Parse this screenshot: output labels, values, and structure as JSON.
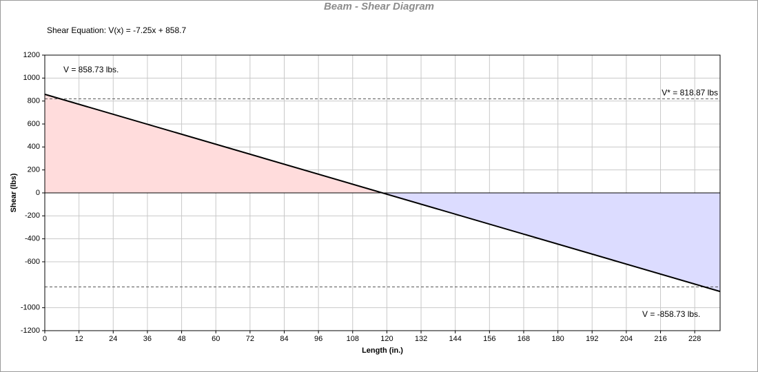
{
  "chart_data": {
    "type": "line",
    "title": "Beam - Shear Diagram",
    "equation": "Shear Equation:  V(x) = -7.25x + 858.7",
    "xlabel": "Length (in.)",
    "ylabel": "Shear (lbs)",
    "x": [
      0,
      236.9
    ],
    "series": [
      {
        "name": "Shear",
        "color": "#000000",
        "values": [
          858.73,
          -858.73
        ]
      }
    ],
    "positive_fill": "#ffdcdc",
    "negative_fill": "#dcdcff",
    "reference_lines": [
      818.87,
      -818.87
    ],
    "annotations": [
      "V = 858.73 lbs.",
      "V* = 818.87 lbs",
      "V = -858.73 lbs."
    ],
    "xlim": [
      0,
      236.9
    ],
    "ylim": [
      -1200,
      1200
    ],
    "xticks": [
      0,
      12,
      24,
      36,
      48,
      60,
      72,
      84,
      96,
      108,
      120,
      132,
      144,
      156,
      168,
      180,
      192,
      204,
      216,
      228
    ],
    "yticks": [
      -1200,
      -1000,
      -600,
      -400,
      -200,
      0,
      200,
      400,
      600,
      800,
      1000,
      1200
    ],
    "grid": true
  }
}
